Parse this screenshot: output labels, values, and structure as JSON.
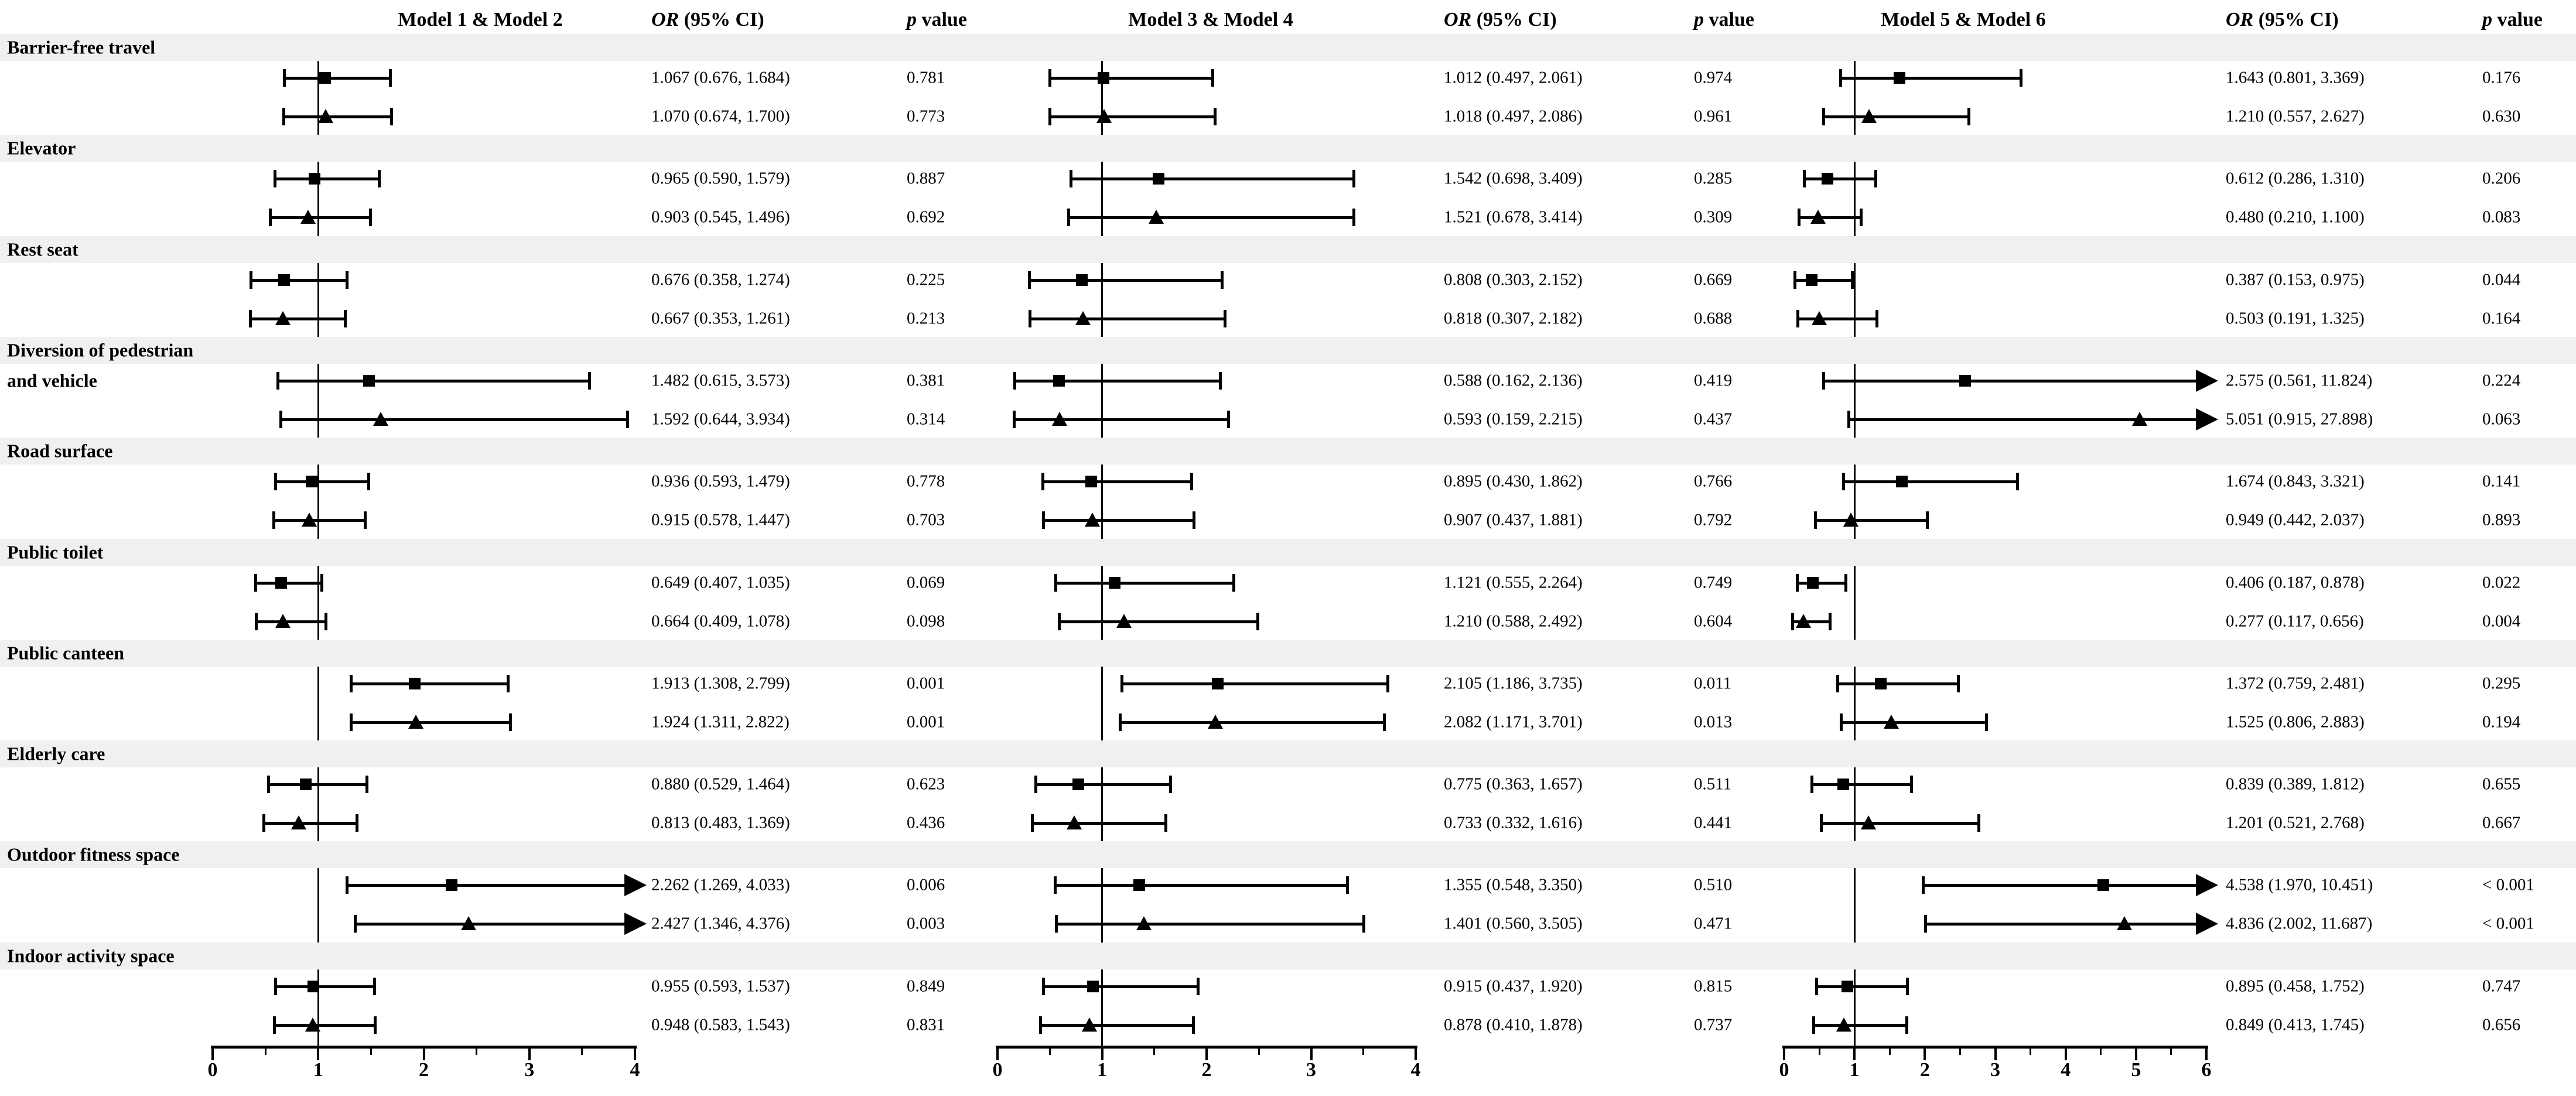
{
  "chart_data": {
    "type": "forest",
    "legend_note": "square = first model of pair, triangle = second model of pair",
    "grid": false,
    "band_color": "#f0f0f0",
    "ink_color": "#000000",
    "panels": [
      {
        "models_header": "Model 1 & Model 2",
        "or_header_italic": "OR",
        "or_header_rest": " (95% CI)",
        "p_header_italic": "p",
        "p_header_rest": " value",
        "axis": {
          "min": 0,
          "max": 4,
          "major_step": 1,
          "minor_step": 0.5,
          "ref_line": 1,
          "tick_labels": [
            "0",
            "1",
            "2",
            "3",
            "4"
          ]
        }
      },
      {
        "models_header": "Model 3 & Model 4",
        "or_header_italic": "OR",
        "or_header_rest": " (95% CI)",
        "p_header_italic": "p",
        "p_header_rest": " value",
        "axis": {
          "min": 0,
          "max": 4,
          "major_step": 1,
          "minor_step": 0.5,
          "ref_line": 1,
          "tick_labels": [
            "0",
            "1",
            "2",
            "3",
            "4"
          ]
        }
      },
      {
        "models_header": "Model 5 & Model 6",
        "or_header_italic": "OR",
        "or_header_rest": " (95% CI)",
        "p_header_italic": "p",
        "p_header_rest": " value",
        "axis": {
          "min": 0,
          "max": 6,
          "major_step": 1,
          "minor_step": 0.5,
          "ref_line": 1,
          "tick_labels": [
            "0",
            "1",
            "2",
            "3",
            "4",
            "5",
            "6"
          ]
        }
      }
    ],
    "categories": [
      {
        "label": "Barrier-free travel",
        "rows": [
          {
            "marker": "square",
            "cells": [
              {
                "or": 1.067,
                "lo": 0.676,
                "hi": 1.684,
                "or_ci": "1.067 (0.676, 1.684)",
                "p": "0.781"
              },
              {
                "or": 1.012,
                "lo": 0.497,
                "hi": 2.061,
                "or_ci": "1.012 (0.497, 2.061)",
                "p": "0.974"
              },
              {
                "or": 1.643,
                "lo": 0.801,
                "hi": 3.369,
                "or_ci": "1.643 (0.801, 3.369)",
                "p": "0.176"
              }
            ]
          },
          {
            "marker": "triangle",
            "cells": [
              {
                "or": 1.07,
                "lo": 0.674,
                "hi": 1.7,
                "or_ci": "1.070 (0.674, 1.700)",
                "p": "0.773"
              },
              {
                "or": 1.018,
                "lo": 0.497,
                "hi": 2.086,
                "or_ci": "1.018 (0.497, 2.086)",
                "p": "0.961"
              },
              {
                "or": 1.21,
                "lo": 0.557,
                "hi": 2.627,
                "or_ci": "1.210 (0.557, 2.627)",
                "p": "0.630"
              }
            ]
          }
        ]
      },
      {
        "label": "Elevator",
        "rows": [
          {
            "marker": "square",
            "cells": [
              {
                "or": 0.965,
                "lo": 0.59,
                "hi": 1.579,
                "or_ci": "0.965 (0.590, 1.579)",
                "p": "0.887"
              },
              {
                "or": 1.542,
                "lo": 0.698,
                "hi": 3.409,
                "or_ci": "1.542 (0.698, 3.409)",
                "p": "0.285"
              },
              {
                "or": 0.612,
                "lo": 0.286,
                "hi": 1.31,
                "or_ci": "0.612 (0.286, 1.310)",
                "p": "0.206"
              }
            ]
          },
          {
            "marker": "triangle",
            "cells": [
              {
                "or": 0.903,
                "lo": 0.545,
                "hi": 1.496,
                "or_ci": "0.903 (0.545, 1.496)",
                "p": "0.692"
              },
              {
                "or": 1.521,
                "lo": 0.678,
                "hi": 3.414,
                "or_ci": "1.521 (0.678, 3.414)",
                "p": "0.309"
              },
              {
                "or": 0.48,
                "lo": 0.21,
                "hi": 1.1,
                "or_ci": "0.480 (0.210, 1.100)",
                "p": "0.083"
              }
            ]
          }
        ]
      },
      {
        "label": "Rest seat",
        "rows": [
          {
            "marker": "square",
            "cells": [
              {
                "or": 0.676,
                "lo": 0.358,
                "hi": 1.274,
                "or_ci": "0.676 (0.358, 1.274)",
                "p": "0.225"
              },
              {
                "or": 0.808,
                "lo": 0.303,
                "hi": 2.152,
                "or_ci": "0.808 (0.303, 2.152)",
                "p": "0.669"
              },
              {
                "or": 0.387,
                "lo": 0.153,
                "hi": 0.975,
                "or_ci": "0.387 (0.153, 0.975)",
                "p": "0.044"
              }
            ]
          },
          {
            "marker": "triangle",
            "cells": [
              {
                "or": 0.667,
                "lo": 0.353,
                "hi": 1.261,
                "or_ci": "0.667 (0.353, 1.261)",
                "p": "0.213"
              },
              {
                "or": 0.818,
                "lo": 0.307,
                "hi": 2.182,
                "or_ci": "0.818 (0.307, 2.182)",
                "p": "0.688"
              },
              {
                "or": 0.503,
                "lo": 0.191,
                "hi": 1.325,
                "or_ci": "0.503 (0.191, 1.325)",
                "p": "0.164"
              }
            ]
          }
        ]
      },
      {
        "label": "Diversion of pedestrian",
        "label2": "and vehicle",
        "rows": [
          {
            "marker": "square",
            "cells": [
              {
                "or": 1.482,
                "lo": 0.615,
                "hi": 3.573,
                "or_ci": "1.482 (0.615, 3.573)",
                "p": "0.381"
              },
              {
                "or": 0.588,
                "lo": 0.162,
                "hi": 2.136,
                "or_ci": "0.588 (0.162, 2.136)",
                "p": "0.419"
              },
              {
                "or": 2.575,
                "lo": 0.561,
                "hi": 11.824,
                "or_ci": "2.575 (0.561, 11.824)",
                "p": "0.224"
              }
            ]
          },
          {
            "marker": "triangle",
            "cells": [
              {
                "or": 1.592,
                "lo": 0.644,
                "hi": 3.934,
                "or_ci": "1.592 (0.644, 3.934)",
                "p": "0.314"
              },
              {
                "or": 0.593,
                "lo": 0.159,
                "hi": 2.215,
                "or_ci": "0.593 (0.159, 2.215)",
                "p": "0.437"
              },
              {
                "or": 5.051,
                "lo": 0.915,
                "hi": 27.898,
                "or_ci": "5.051 (0.915, 27.898)",
                "p": "0.063"
              }
            ]
          }
        ]
      },
      {
        "label": "Road surface",
        "rows": [
          {
            "marker": "square",
            "cells": [
              {
                "or": 0.936,
                "lo": 0.593,
                "hi": 1.479,
                "or_ci": "0.936 (0.593, 1.479)",
                "p": "0.778"
              },
              {
                "or": 0.895,
                "lo": 0.43,
                "hi": 1.862,
                "or_ci": "0.895 (0.430, 1.862)",
                "p": "0.766"
              },
              {
                "or": 1.674,
                "lo": 0.843,
                "hi": 3.321,
                "or_ci": "1.674 (0.843, 3.321)",
                "p": "0.141"
              }
            ]
          },
          {
            "marker": "triangle",
            "cells": [
              {
                "or": 0.915,
                "lo": 0.578,
                "hi": 1.447,
                "or_ci": "0.915 (0.578, 1.447)",
                "p": "0.703"
              },
              {
                "or": 0.907,
                "lo": 0.437,
                "hi": 1.881,
                "or_ci": "0.907 (0.437, 1.881)",
                "p": "0.792"
              },
              {
                "or": 0.949,
                "lo": 0.442,
                "hi": 2.037,
                "or_ci": "0.949 (0.442, 2.037)",
                "p": "0.893"
              }
            ]
          }
        ]
      },
      {
        "label": "Public toilet",
        "rows": [
          {
            "marker": "square",
            "cells": [
              {
                "or": 0.649,
                "lo": 0.407,
                "hi": 1.035,
                "or_ci": "0.649 (0.407, 1.035)",
                "p": "0.069"
              },
              {
                "or": 1.121,
                "lo": 0.555,
                "hi": 2.264,
                "or_ci": "1.121 (0.555, 2.264)",
                "p": "0.749"
              },
              {
                "or": 0.406,
                "lo": 0.187,
                "hi": 0.878,
                "or_ci": "0.406 (0.187, 0.878)",
                "p": "0.022"
              }
            ]
          },
          {
            "marker": "triangle",
            "cells": [
              {
                "or": 0.664,
                "lo": 0.409,
                "hi": 1.078,
                "or_ci": "0.664 (0.409, 1.078)",
                "p": "0.098"
              },
              {
                "or": 1.21,
                "lo": 0.588,
                "hi": 2.492,
                "or_ci": "1.210 (0.588, 2.492)",
                "p": "0.604"
              },
              {
                "or": 0.277,
                "lo": 0.117,
                "hi": 0.656,
                "or_ci": "0.277 (0.117, 0.656)",
                "p": "0.004"
              }
            ]
          }
        ]
      },
      {
        "label": "Public canteen",
        "rows": [
          {
            "marker": "square",
            "cells": [
              {
                "or": 1.913,
                "lo": 1.308,
                "hi": 2.799,
                "or_ci": "1.913 (1.308, 2.799)",
                "p": "0.001"
              },
              {
                "or": 2.105,
                "lo": 1.186,
                "hi": 3.735,
                "or_ci": "2.105 (1.186, 3.735)",
                "p": "0.011"
              },
              {
                "or": 1.372,
                "lo": 0.759,
                "hi": 2.481,
                "or_ci": "1.372 (0.759, 2.481)",
                "p": "0.295"
              }
            ]
          },
          {
            "marker": "triangle",
            "cells": [
              {
                "or": 1.924,
                "lo": 1.311,
                "hi": 2.822,
                "or_ci": "1.924 (1.311, 2.822)",
                "p": "0.001"
              },
              {
                "or": 2.082,
                "lo": 1.171,
                "hi": 3.701,
                "or_ci": "2.082 (1.171, 3.701)",
                "p": "0.013"
              },
              {
                "or": 1.525,
                "lo": 0.806,
                "hi": 2.883,
                "or_ci": "1.525 (0.806, 2.883)",
                "p": "0.194"
              }
            ]
          }
        ]
      },
      {
        "label": "Elderly care",
        "rows": [
          {
            "marker": "square",
            "cells": [
              {
                "or": 0.88,
                "lo": 0.529,
                "hi": 1.464,
                "or_ci": "0.880 (0.529, 1.464)",
                "p": "0.623"
              },
              {
                "or": 0.775,
                "lo": 0.363,
                "hi": 1.657,
                "or_ci": "0.775 (0.363, 1.657)",
                "p": "0.511"
              },
              {
                "or": 0.839,
                "lo": 0.389,
                "hi": 1.812,
                "or_ci": "0.839 (0.389, 1.812)",
                "p": "0.655"
              }
            ]
          },
          {
            "marker": "triangle",
            "cells": [
              {
                "or": 0.813,
                "lo": 0.483,
                "hi": 1.369,
                "or_ci": "0.813 (0.483, 1.369)",
                "p": "0.436"
              },
              {
                "or": 0.733,
                "lo": 0.332,
                "hi": 1.616,
                "or_ci": "0.733 (0.332, 1.616)",
                "p": "0.441"
              },
              {
                "or": 1.201,
                "lo": 0.521,
                "hi": 2.768,
                "or_ci": "1.201 (0.521, 2.768)",
                "p": "0.667"
              }
            ]
          }
        ]
      },
      {
        "label": "Outdoor fitness space",
        "rows": [
          {
            "marker": "square",
            "cells": [
              {
                "or": 2.262,
                "lo": 1.269,
                "hi": 4.033,
                "or_ci": "2.262 (1.269, 4.033)",
                "p": "0.006"
              },
              {
                "or": 1.355,
                "lo": 0.548,
                "hi": 3.35,
                "or_ci": "1.355 (0.548, 3.350)",
                "p": "0.510"
              },
              {
                "or": 4.538,
                "lo": 1.97,
                "hi": 10.451,
                "or_ci": "4.538 (1.970, 10.451)",
                "p": "< 0.001"
              }
            ]
          },
          {
            "marker": "triangle",
            "cells": [
              {
                "or": 2.427,
                "lo": 1.346,
                "hi": 4.376,
                "or_ci": "2.427 (1.346, 4.376)",
                "p": "0.003"
              },
              {
                "or": 1.401,
                "lo": 0.56,
                "hi": 3.505,
                "or_ci": "1.401 (0.560, 3.505)",
                "p": "0.471"
              },
              {
                "or": 4.836,
                "lo": 2.002,
                "hi": 11.687,
                "or_ci": "4.836 (2.002, 11.687)",
                "p": "< 0.001"
              }
            ]
          }
        ]
      },
      {
        "label": "Indoor activity space",
        "rows": [
          {
            "marker": "square",
            "cells": [
              {
                "or": 0.955,
                "lo": 0.593,
                "hi": 1.537,
                "or_ci": "0.955 (0.593, 1.537)",
                "p": "0.849"
              },
              {
                "or": 0.915,
                "lo": 0.437,
                "hi": 1.92,
                "or_ci": "0.915 (0.437, 1.920)",
                "p": "0.815"
              },
              {
                "or": 0.895,
                "lo": 0.458,
                "hi": 1.752,
                "or_ci": "0.895 (0.458, 1.752)",
                "p": "0.747"
              }
            ]
          },
          {
            "marker": "triangle",
            "cells": [
              {
                "or": 0.948,
                "lo": 0.583,
                "hi": 1.543,
                "or_ci": "0.948 (0.583, 1.543)",
                "p": "0.831"
              },
              {
                "or": 0.878,
                "lo": 0.41,
                "hi": 1.878,
                "or_ci": "0.878 (0.410, 1.878)",
                "p": "0.737"
              },
              {
                "or": 0.849,
                "lo": 0.413,
                "hi": 1.745,
                "or_ci": "0.849 (0.413, 1.745)",
                "p": "0.656"
              }
            ]
          }
        ]
      }
    ]
  }
}
